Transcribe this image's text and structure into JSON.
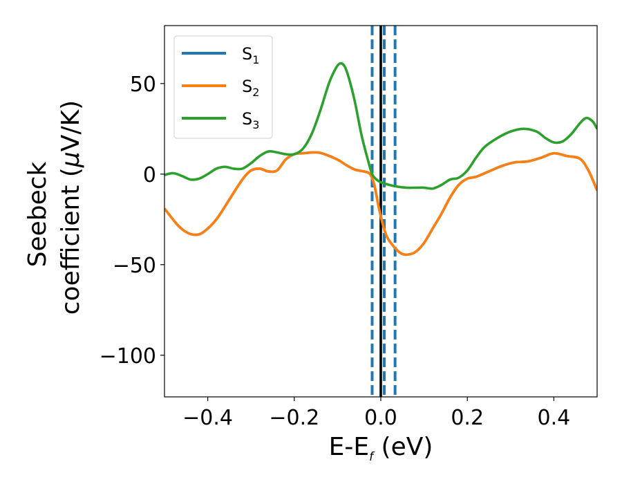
{
  "chart_data": {
    "type": "line",
    "xlabel": {
      "base": "E-E",
      "sub": "f",
      "rest": " (eV)"
    },
    "ylabel": {
      "line1": "Seebeck",
      "line2_pre": "coefficient  (",
      "mu": "μ",
      "line2_post": "V/K)"
    },
    "xlim": [
      -0.5,
      0.5
    ],
    "ylim": [
      -123,
      82
    ],
    "xticks": [
      -0.4,
      -0.2,
      0.0,
      0.2,
      0.4
    ],
    "xtick_labels": [
      "−0.4",
      "−0.2",
      "0.0",
      "0.2",
      "0.4"
    ],
    "yticks": [
      50,
      0,
      -50,
      -100
    ],
    "ytick_labels": [
      "50",
      "0",
      "−50",
      "−100"
    ],
    "grid": false,
    "legend_position": "top-left",
    "series": [
      {
        "name": "S",
        "sub": "1",
        "color": "#1f77b4",
        "points": [
          [
            -0.5,
            -19
          ],
          [
            -0.47,
            -28
          ],
          [
            -0.45,
            -32
          ],
          [
            -0.43,
            -33.5
          ],
          [
            -0.41,
            -32
          ],
          [
            -0.38,
            -25
          ],
          [
            -0.35,
            -14
          ],
          [
            -0.32,
            -3
          ],
          [
            -0.3,
            2
          ],
          [
            -0.28,
            3
          ],
          [
            -0.26,
            1.5
          ],
          [
            -0.24,
            2
          ],
          [
            -0.22,
            8
          ],
          [
            -0.2,
            11
          ],
          [
            -0.18,
            11.5
          ],
          [
            -0.15,
            12
          ],
          [
            -0.13,
            11
          ],
          [
            -0.1,
            8
          ],
          [
            -0.08,
            5
          ],
          [
            -0.06,
            2.5
          ],
          [
            -0.04,
            1.5
          ],
          [
            -0.025,
            0
          ],
          [
            -0.015,
            -6
          ],
          [
            -0.005,
            -18
          ],
          [
            0.005,
            -28
          ],
          [
            0.015,
            -35
          ],
          [
            0.03,
            -40
          ],
          [
            0.045,
            -43.5
          ],
          [
            0.06,
            -44.5
          ],
          [
            0.08,
            -43
          ],
          [
            0.1,
            -38
          ],
          [
            0.12,
            -30
          ],
          [
            0.14,
            -22
          ],
          [
            0.16,
            -13
          ],
          [
            0.18,
            -6
          ],
          [
            0.2,
            -2.5
          ],
          [
            0.22,
            -1.5
          ],
          [
            0.25,
            1.5
          ],
          [
            0.28,
            4.5
          ],
          [
            0.31,
            6.5
          ],
          [
            0.34,
            7
          ],
          [
            0.37,
            9
          ],
          [
            0.4,
            11.5
          ],
          [
            0.43,
            10
          ],
          [
            0.46,
            8.5
          ],
          [
            0.48,
            2
          ],
          [
            0.5,
            -9
          ]
        ]
      },
      {
        "name": "S",
        "sub": "2",
        "color": "#ff7f0e",
        "points": [
          [
            -0.5,
            -19
          ],
          [
            -0.47,
            -28
          ],
          [
            -0.45,
            -32
          ],
          [
            -0.43,
            -33.5
          ],
          [
            -0.41,
            -32
          ],
          [
            -0.38,
            -25
          ],
          [
            -0.35,
            -14
          ],
          [
            -0.32,
            -3
          ],
          [
            -0.3,
            2
          ],
          [
            -0.28,
            3
          ],
          [
            -0.26,
            1.5
          ],
          [
            -0.24,
            2
          ],
          [
            -0.22,
            8
          ],
          [
            -0.2,
            11
          ],
          [
            -0.18,
            11.5
          ],
          [
            -0.15,
            12
          ],
          [
            -0.13,
            11
          ],
          [
            -0.1,
            8
          ],
          [
            -0.08,
            5
          ],
          [
            -0.06,
            2.5
          ],
          [
            -0.04,
            1.5
          ],
          [
            -0.025,
            0
          ],
          [
            -0.015,
            -6
          ],
          [
            -0.005,
            -18
          ],
          [
            0.005,
            -28
          ],
          [
            0.015,
            -35
          ],
          [
            0.03,
            -40
          ],
          [
            0.045,
            -43.5
          ],
          [
            0.06,
            -44.5
          ],
          [
            0.08,
            -43
          ],
          [
            0.1,
            -38
          ],
          [
            0.12,
            -30
          ],
          [
            0.14,
            -22
          ],
          [
            0.16,
            -13
          ],
          [
            0.18,
            -6
          ],
          [
            0.2,
            -2.5
          ],
          [
            0.22,
            -1.5
          ],
          [
            0.25,
            1.5
          ],
          [
            0.28,
            4.5
          ],
          [
            0.31,
            6.5
          ],
          [
            0.34,
            7
          ],
          [
            0.37,
            9
          ],
          [
            0.4,
            11.5
          ],
          [
            0.43,
            10
          ],
          [
            0.46,
            8.5
          ],
          [
            0.48,
            2
          ],
          [
            0.5,
            -9
          ]
        ]
      },
      {
        "name": "S",
        "sub": "3",
        "color": "#2ca02c",
        "points": [
          [
            -0.5,
            -0.5
          ],
          [
            -0.48,
            0.5
          ],
          [
            -0.46,
            -1
          ],
          [
            -0.44,
            -3
          ],
          [
            -0.42,
            -2.5
          ],
          [
            -0.4,
            0
          ],
          [
            -0.38,
            3
          ],
          [
            -0.36,
            4
          ],
          [
            -0.34,
            3
          ],
          [
            -0.32,
            3
          ],
          [
            -0.3,
            6
          ],
          [
            -0.28,
            10
          ],
          [
            -0.26,
            12.5
          ],
          [
            -0.24,
            12
          ],
          [
            -0.22,
            11
          ],
          [
            -0.2,
            11
          ],
          [
            -0.18,
            14
          ],
          [
            -0.16,
            22
          ],
          [
            -0.14,
            35
          ],
          [
            -0.12,
            50
          ],
          [
            -0.105,
            58
          ],
          [
            -0.095,
            61
          ],
          [
            -0.085,
            60
          ],
          [
            -0.075,
            54
          ],
          [
            -0.06,
            40
          ],
          [
            -0.045,
            22
          ],
          [
            -0.03,
            8
          ],
          [
            -0.02,
            0
          ],
          [
            -0.01,
            -3
          ],
          [
            0.0,
            -4.5
          ],
          [
            0.02,
            -6
          ],
          [
            0.04,
            -7
          ],
          [
            0.06,
            -7.5
          ],
          [
            0.08,
            -7.5
          ],
          [
            0.1,
            -7.5
          ],
          [
            0.12,
            -8
          ],
          [
            0.14,
            -6
          ],
          [
            0.16,
            -3
          ],
          [
            0.18,
            -2
          ],
          [
            0.2,
            2
          ],
          [
            0.22,
            9
          ],
          [
            0.24,
            15
          ],
          [
            0.27,
            20
          ],
          [
            0.3,
            23.5
          ],
          [
            0.33,
            25
          ],
          [
            0.36,
            23.5
          ],
          [
            0.38,
            20
          ],
          [
            0.4,
            17.5
          ],
          [
            0.42,
            18
          ],
          [
            0.44,
            22
          ],
          [
            0.46,
            28
          ],
          [
            0.475,
            31
          ],
          [
            0.49,
            29
          ],
          [
            0.5,
            25
          ]
        ]
      }
    ],
    "vlines": [
      {
        "x": 0.0,
        "color": "#000000",
        "style": "solid"
      },
      {
        "x": -0.02,
        "color": "#1f77b4",
        "style": "dashed"
      },
      {
        "x": 0.008,
        "color": "#1f77b4",
        "style": "dashed"
      },
      {
        "x": 0.033,
        "color": "#1f77b4",
        "style": "dashed"
      }
    ]
  }
}
